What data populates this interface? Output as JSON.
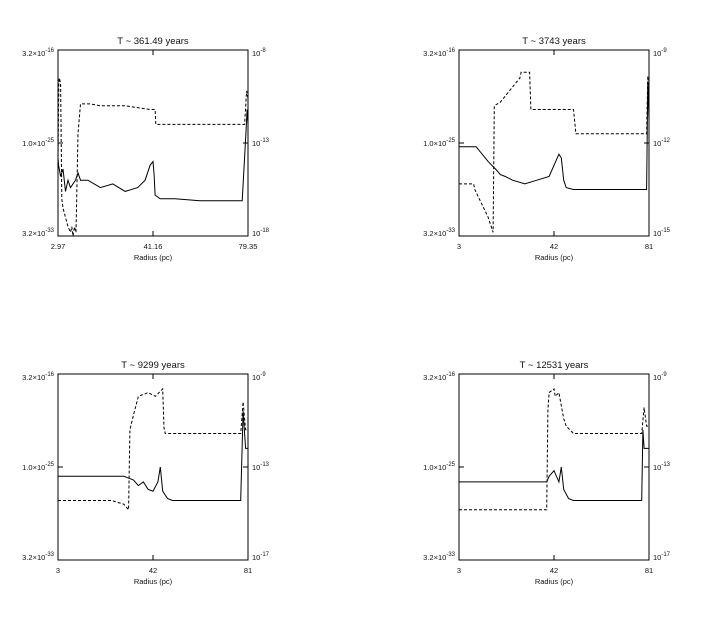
{
  "chart_data": [
    {
      "type": "line",
      "title": "T ~ 361.49 years",
      "xlabel": "Radius (pc)",
      "x_ticks": [
        "2.97",
        "41.16",
        "79.35"
      ],
      "xlim": [
        2.97,
        79.35
      ],
      "left_ticks": [
        {
          "base": "3.2×10",
          "exp": "-16"
        },
        {
          "base": "1.0×10",
          "exp": "-25"
        },
        {
          "base": "3.2×10",
          "exp": "-33"
        }
      ],
      "right_ticks": [
        {
          "base": "10",
          "exp": "-8"
        },
        {
          "base": "10",
          "exp": "-13"
        },
        {
          "base": "10",
          "exp": "-18"
        }
      ],
      "series": [
        {
          "style": "solid",
          "x": [
            2.97,
            3.2,
            4.0,
            5.0,
            6.0,
            7.0,
            8.0,
            10.0,
            11.0,
            12.0,
            15.0,
            20.0,
            25.0,
            30.0,
            35.0,
            38.0,
            40.0,
            41.16,
            41.6,
            42.0,
            43.0,
            44.0,
            50.0,
            60.0,
            70.0,
            77.0,
            78.5,
            79.0,
            79.35
          ],
          "y": [
            0.42,
            0.38,
            0.32,
            0.36,
            0.24,
            0.3,
            0.26,
            0.3,
            0.34,
            0.3,
            0.3,
            0.26,
            0.28,
            0.24,
            0.26,
            0.3,
            0.38,
            0.4,
            0.33,
            0.22,
            0.21,
            0.2,
            0.2,
            0.19,
            0.19,
            0.19,
            0.55,
            0.68,
            0.6
          ]
        },
        {
          "style": "dashed",
          "x": [
            2.97,
            3.3,
            3.5,
            4.0,
            4.5,
            5.0,
            6.0,
            7.0,
            8.0,
            8.5,
            9.0,
            9.6,
            10.2,
            11.0,
            12.0,
            16.0,
            20.0,
            30.0,
            40.0,
            42.0,
            42.3,
            50.0,
            60.0,
            70.0,
            78.0,
            78.8,
            79.35
          ],
          "y": [
            0.4,
            0.82,
            0.85,
            0.82,
            0.2,
            0.15,
            0.1,
            0.05,
            0.02,
            0.05,
            0.0,
            0.05,
            0.02,
            0.55,
            0.71,
            0.71,
            0.7,
            0.7,
            0.68,
            0.68,
            0.6,
            0.6,
            0.6,
            0.6,
            0.6,
            0.78,
            0.74
          ]
        }
      ]
    },
    {
      "type": "line",
      "title": "T ~ 3743 years",
      "xlabel": "Radius (pc)",
      "x_ticks": [
        "3",
        "42",
        "81"
      ],
      "xlim": [
        3,
        81
      ],
      "left_ticks": [
        {
          "base": "3.2×10",
          "exp": "-16"
        },
        {
          "base": "1.0×10",
          "exp": "-25"
        },
        {
          "base": "3.2×10",
          "exp": "-33"
        }
      ],
      "right_ticks": [
        {
          "base": "10",
          "exp": "-9"
        },
        {
          "base": "10",
          "exp": "-12"
        },
        {
          "base": "10",
          "exp": "-15"
        }
      ],
      "series": [
        {
          "style": "solid",
          "x": [
            3,
            10,
            15,
            18,
            20,
            22,
            25,
            30,
            35,
            40,
            44,
            45,
            46,
            47,
            50,
            60,
            70,
            80,
            80.5,
            81
          ],
          "y": [
            0.48,
            0.48,
            0.4,
            0.36,
            0.33,
            0.32,
            0.3,
            0.28,
            0.3,
            0.32,
            0.44,
            0.42,
            0.3,
            0.26,
            0.25,
            0.25,
            0.25,
            0.25,
            0.83,
            0.62
          ]
        },
        {
          "style": "dashed",
          "x": [
            3,
            9,
            9.5,
            15,
            17,
            17.5,
            20,
            28,
            28.5,
            32,
            32.5,
            50,
            51,
            60,
            70,
            80,
            80.5,
            81
          ],
          "y": [
            0.28,
            0.28,
            0.25,
            0.1,
            0.02,
            0.7,
            0.72,
            0.85,
            0.88,
            0.88,
            0.68,
            0.68,
            0.55,
            0.55,
            0.55,
            0.55,
            0.86,
            0.72
          ]
        }
      ]
    },
    {
      "type": "line",
      "title": "T ~ 9299 years",
      "xlabel": "Radius (pc)",
      "x_ticks": [
        "3",
        "42",
        "81"
      ],
      "xlim": [
        3,
        81
      ],
      "left_ticks": [
        {
          "base": "3.2×10",
          "exp": "-16"
        },
        {
          "base": "1.0×10",
          "exp": "-25"
        },
        {
          "base": "3.2×10",
          "exp": "-33"
        }
      ],
      "right_ticks": [
        {
          "base": "10",
          "exp": "-9"
        },
        {
          "base": "10",
          "exp": "-13"
        },
        {
          "base": "10",
          "exp": "-17"
        }
      ],
      "series": [
        {
          "style": "solid",
          "x": [
            3,
            30,
            34,
            36,
            38,
            40,
            42,
            44,
            45,
            46,
            48,
            50,
            60,
            70,
            78,
            79,
            80,
            81
          ],
          "y": [
            0.45,
            0.45,
            0.43,
            0.4,
            0.42,
            0.38,
            0.37,
            0.42,
            0.5,
            0.37,
            0.33,
            0.32,
            0.32,
            0.32,
            0.32,
            0.8,
            0.6,
            0.6
          ]
        },
        {
          "style": "dashed",
          "x": [
            3,
            25,
            30,
            32,
            32.5,
            34,
            36,
            40,
            43,
            46,
            46.5,
            47,
            60,
            70,
            78,
            79,
            80,
            81
          ],
          "y": [
            0.32,
            0.32,
            0.3,
            0.27,
            0.7,
            0.78,
            0.88,
            0.9,
            0.88,
            0.92,
            0.71,
            0.68,
            0.68,
            0.68,
            0.68,
            0.85,
            0.7,
            0.7
          ]
        }
      ]
    },
    {
      "type": "line",
      "title": "T ~ 12531 years",
      "xlabel": "Radius (pc)",
      "x_ticks": [
        "3",
        "42",
        "81"
      ],
      "xlim": [
        3,
        81
      ],
      "left_ticks": [
        {
          "base": "3.2×10",
          "exp": "-16"
        },
        {
          "base": "1.0×10",
          "exp": "-25"
        },
        {
          "base": "3.2×10",
          "exp": "-33"
        }
      ],
      "right_ticks": [
        {
          "base": "10",
          "exp": "-9"
        },
        {
          "base": "10",
          "exp": "-13"
        },
        {
          "base": "10",
          "exp": "-17"
        }
      ],
      "series": [
        {
          "style": "solid",
          "x": [
            3,
            39,
            40,
            42,
            44,
            45,
            46,
            48,
            50,
            60,
            70,
            78,
            78.5,
            79,
            81
          ],
          "y": [
            0.42,
            0.42,
            0.45,
            0.48,
            0.42,
            0.5,
            0.38,
            0.33,
            0.32,
            0.32,
            0.32,
            0.32,
            0.7,
            0.6,
            0.6
          ]
        },
        {
          "style": "dashed",
          "x": [
            3,
            39,
            39.5,
            40,
            42,
            42.5,
            44,
            46,
            47,
            50,
            60,
            70,
            78,
            79,
            80,
            81
          ],
          "y": [
            0.27,
            0.27,
            0.8,
            0.9,
            0.92,
            0.88,
            0.9,
            0.76,
            0.72,
            0.68,
            0.68,
            0.68,
            0.68,
            0.82,
            0.72,
            0.72
          ]
        }
      ]
    }
  ]
}
